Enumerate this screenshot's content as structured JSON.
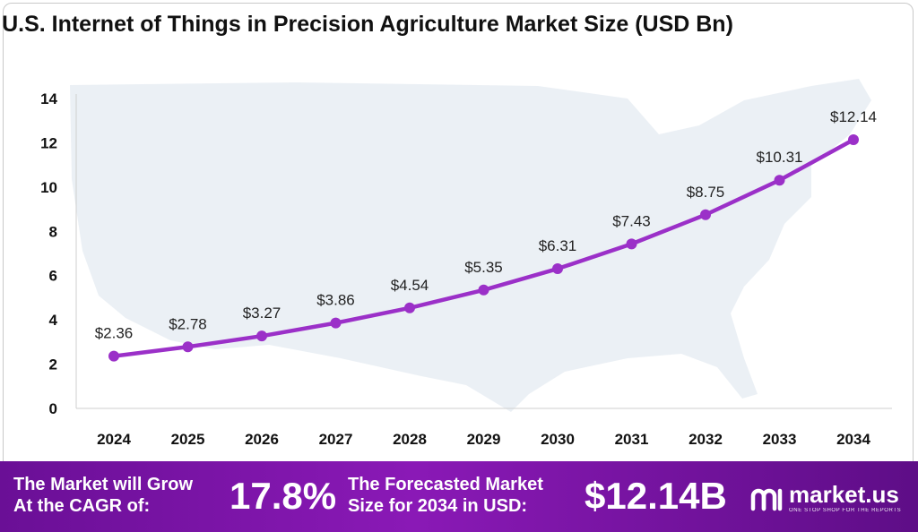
{
  "title": "U.S. Internet of Things in Precision Agriculture Market Size (USD Bn)",
  "chart_data": {
    "type": "line",
    "title": "U.S. Internet of Things in Precision Agriculture Market Size (USD Bn)",
    "xlabel": "",
    "ylabel": "",
    "categories": [
      "2024",
      "2025",
      "2026",
      "2027",
      "2028",
      "2029",
      "2030",
      "2031",
      "2032",
      "2033",
      "2034"
    ],
    "series": [
      {
        "values": [
          2.36,
          2.78,
          3.27,
          3.86,
          4.54,
          5.35,
          6.31,
          7.43,
          8.75,
          10.31,
          12.14
        ],
        "labels": [
          "$2.36",
          "$2.78",
          "$3.27",
          "$3.86",
          "$4.54",
          "$5.35",
          "$6.31",
          "$7.43",
          "$8.75",
          "$10.31",
          "$12.14"
        ]
      }
    ],
    "yticks": [
      "0",
      "2",
      "4",
      "6",
      "8",
      "10",
      "12",
      "14"
    ],
    "ylim": [
      0,
      14
    ],
    "grid": false,
    "legend": "none",
    "line_color": "#9b30c8"
  },
  "footer": {
    "cagr_label_line1": "The Market will Grow",
    "cagr_label_line2": "At the CAGR of:",
    "cagr_value": "17.8%",
    "forecast_label_line1": "The Forecasted Market",
    "forecast_label_line2": "Size for 2034 in USD:",
    "forecast_value": "$12.14B",
    "brand_name": "market.us",
    "brand_tagline": "ONE STOP SHOP FOR THE REPORTS"
  },
  "colors": {
    "line": "#9b30c8",
    "footer_bg": "#7a14a6",
    "map": "#e6ecf3"
  }
}
